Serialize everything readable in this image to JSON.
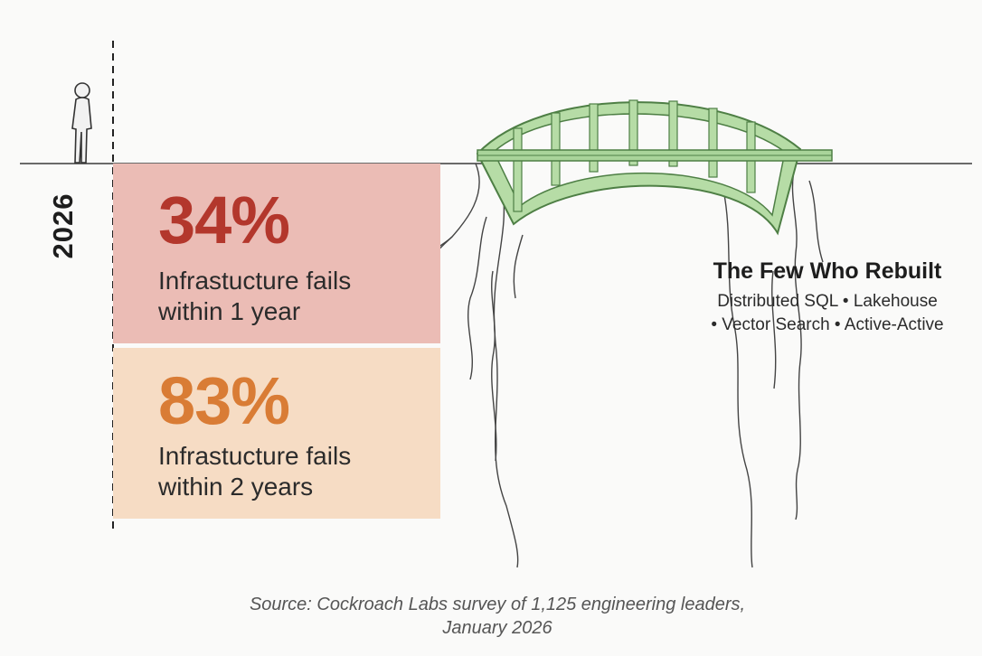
{
  "year_label": "2026",
  "stats": [
    {
      "value": "34%",
      "description_line1": "Infrastucture fails",
      "description_line2": "within 1 year",
      "color": "#b3372c",
      "background": "#ebbcb5"
    },
    {
      "value": "83%",
      "description_line1": "Infrastucture fails",
      "description_line2": "within 2 years",
      "color": "#d97c35",
      "background": "#f6dcc4"
    }
  ],
  "rebuilt": {
    "title": "The Few Who Rebuilt",
    "line1": "Distributed SQL • Lakehouse",
    "line2": "• Vector Search • Active-Active"
  },
  "source": {
    "line1": "Source: Cockroach Labs survey of 1,125 engineering leaders,",
    "line2": "January 2026"
  },
  "colors": {
    "bridge": "#a9d49a",
    "bridge_outline": "#4e7f45",
    "ink": "#2b2b2b"
  }
}
